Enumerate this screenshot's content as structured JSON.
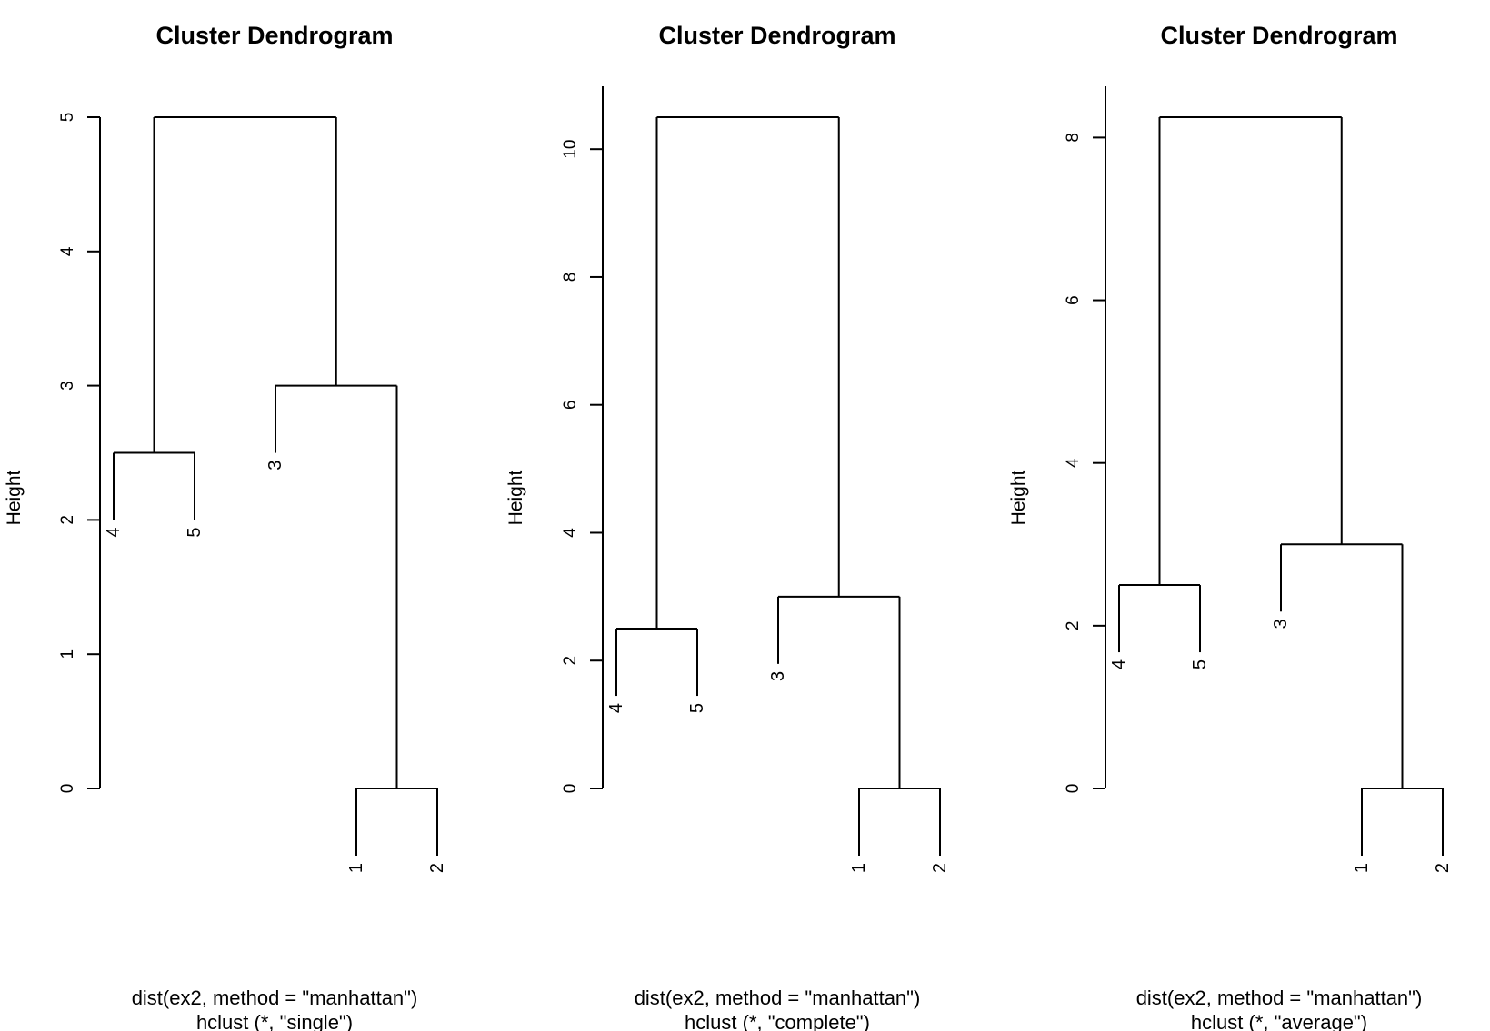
{
  "chart_data": [
    {
      "type": "dendrogram",
      "title": "Cluster Dendrogram",
      "ylabel": "Height",
      "xlabel": "dist(ex2, method = \"manhattan\")",
      "sublabel": "hclust (*, \"single\")",
      "ylim": [
        0,
        5
      ],
      "yticks": [
        0,
        1,
        2,
        3,
        4,
        5
      ],
      "leaf_order": [
        "4",
        "5",
        "3",
        "1",
        "2"
      ],
      "merges": [
        {
          "left": "1",
          "right": "2",
          "height": 0
        },
        {
          "left": "4",
          "right": "5",
          "height": 2.5
        },
        {
          "left": "3",
          "right": "1,2",
          "height": 3
        },
        {
          "left": "4,5",
          "right": "3,1,2",
          "height": 5
        }
      ]
    },
    {
      "type": "dendrogram",
      "title": "Cluster Dendrogram",
      "ylabel": "Height",
      "xlabel": "dist(ex2, method = \"manhattan\")",
      "sublabel": "hclust (*, \"complete\")",
      "ylim": [
        0,
        10.5
      ],
      "yticks": [
        0,
        2,
        4,
        6,
        8,
        10
      ],
      "leaf_order": [
        "4",
        "5",
        "3",
        "1",
        "2"
      ],
      "merges": [
        {
          "left": "1",
          "right": "2",
          "height": 0
        },
        {
          "left": "4",
          "right": "5",
          "height": 2.5
        },
        {
          "left": "3",
          "right": "1,2",
          "height": 3
        },
        {
          "left": "4,5",
          "right": "3,1,2",
          "height": 10.5
        }
      ]
    },
    {
      "type": "dendrogram",
      "title": "Cluster Dendrogram",
      "ylabel": "Height",
      "xlabel": "dist(ex2, method = \"manhattan\")",
      "sublabel": "hclust (*, \"average\")",
      "ylim": [
        0,
        8.25
      ],
      "yticks": [
        0,
        2,
        4,
        6,
        8
      ],
      "leaf_order": [
        "4",
        "5",
        "3",
        "1",
        "2"
      ],
      "merges": [
        {
          "left": "1",
          "right": "2",
          "height": 0
        },
        {
          "left": "4",
          "right": "5",
          "height": 2.5
        },
        {
          "left": "3",
          "right": "1,2",
          "height": 3
        },
        {
          "left": "4,5",
          "right": "3,1,2",
          "height": 8.25
        }
      ]
    }
  ]
}
